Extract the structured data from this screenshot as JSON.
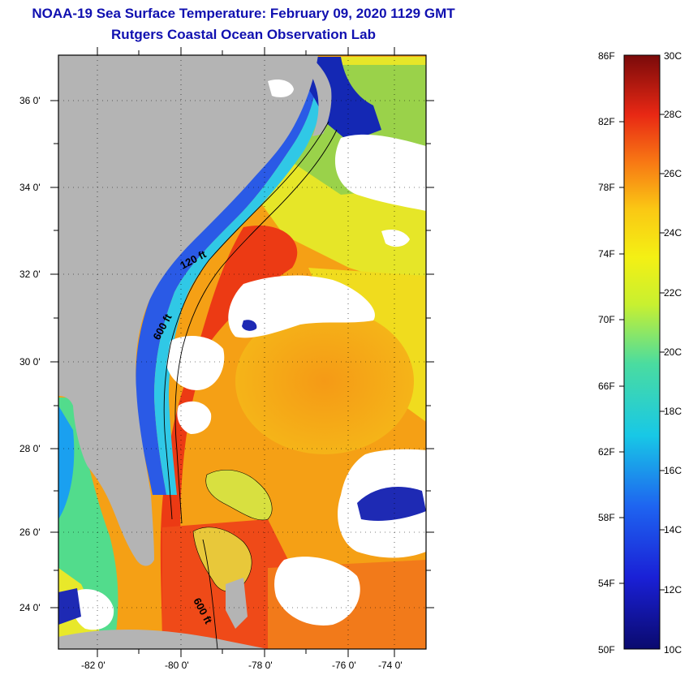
{
  "title": {
    "line1": "NOAA-19 Sea Surface Temperature:  February 09, 2020 1129 GMT",
    "line2": "Rutgers Coastal Ocean Observation Lab"
  },
  "map": {
    "lat_labels": [
      "36 0'",
      "34 0'",
      "32 0'",
      "30 0'",
      "28 0'",
      "26 0'",
      "24 0'"
    ],
    "lon_labels": [
      "-82 0'",
      "-80 0'",
      "-78 0'",
      "-76 0'",
      "-74 0'"
    ],
    "contours": [
      "120 ft",
      "600 ft",
      "600 ft"
    ],
    "colors": {
      "land": "#b4b4b4",
      "cloud": "#ffffff",
      "warm": "#f23214",
      "cool": "#1e46d2"
    }
  },
  "colorbar": {
    "fahrenheit": [
      "86F",
      "82F",
      "78F",
      "74F",
      "70F",
      "66F",
      "62F",
      "58F",
      "54F",
      "50F"
    ],
    "celsius": [
      "30C",
      "28C",
      "26C",
      "24C",
      "22C",
      "20C",
      "18C",
      "16C",
      "14C",
      "12C",
      "10C"
    ]
  }
}
